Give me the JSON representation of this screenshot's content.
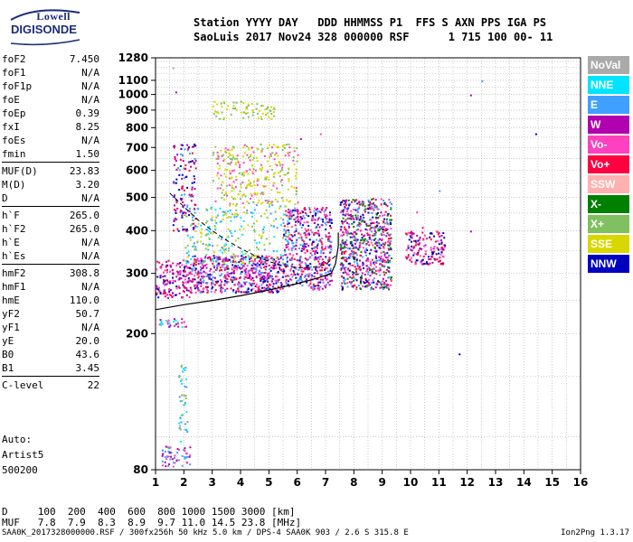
{
  "logo": {
    "top": "Lowell",
    "bottom": "DIGISONDE"
  },
  "header": {
    "line1": "Station YYYY DAY   DDD HHMMSS P1  FFS S AXN PPS IGA PS",
    "line2": "SaoLuis 2017 Nov24 328 000000 RSF      1 715 100 00- 11"
  },
  "params_groups": [
    [
      {
        "label": "foF2",
        "value": "7.450"
      },
      {
        "label": "foF1",
        "value": "N/A"
      },
      {
        "label": "foF1p",
        "value": "N/A"
      },
      {
        "label": "foE",
        "value": "N/A"
      },
      {
        "label": "foEp",
        "value": "0.39"
      },
      {
        "label": "fxI",
        "value": "8.25"
      },
      {
        "label": "foEs",
        "value": "N/A"
      },
      {
        "label": "fmin",
        "value": "1.50"
      }
    ],
    [
      {
        "label": "MUF(D)",
        "value": "23.83"
      },
      {
        "label": "M(D)",
        "value": "3.20"
      },
      {
        "label": "D",
        "value": "N/A"
      }
    ],
    [
      {
        "label": "h`F",
        "value": "265.0"
      },
      {
        "label": "h`F2",
        "value": "265.0"
      },
      {
        "label": "h`E",
        "value": "N/A"
      },
      {
        "label": "h`Es",
        "value": "N/A"
      }
    ],
    [
      {
        "label": "hmF2",
        "value": "308.8"
      },
      {
        "label": "hmF1",
        "value": "N/A"
      },
      {
        "label": "hmE",
        "value": "110.0"
      },
      {
        "label": "yF2",
        "value": "50.7"
      },
      {
        "label": "yF1",
        "value": "N/A"
      },
      {
        "label": "yE",
        "value": "20.0"
      },
      {
        "label": "B0",
        "value": "43.6"
      },
      {
        "label": "B1",
        "value": "3.45"
      }
    ],
    [
      {
        "label": "C-level",
        "value": "22"
      }
    ]
  ],
  "auto": {
    "line1": "Auto:",
    "line2": "Artist5",
    "line3": "500200"
  },
  "legend": [
    {
      "label": "NoVal",
      "color": "#aaaaaa"
    },
    {
      "label": "NNE",
      "color": "#00e5ff"
    },
    {
      "label": "E",
      "color": "#40a0ff"
    },
    {
      "label": "W",
      "color": "#b000b0"
    },
    {
      "label": "Vo-",
      "color": "#ff40c0"
    },
    {
      "label": "Vo+",
      "color": "#ff0040"
    },
    {
      "label": "SSW",
      "color": "#ffb0b0"
    },
    {
      "label": "X-",
      "color": "#008000"
    },
    {
      "label": "X+",
      "color": "#80c060"
    },
    {
      "label": "SSE",
      "color": "#d8d800"
    },
    {
      "label": "NNW",
      "color": "#0000c0"
    }
  ],
  "dtable": {
    "d_line": "D     100  200  400  600  800 1000 1500 3000 [km]",
    "muf_line": "MUF   7.8  7.9  8.3  8.9  9.7 11.0 14.5 23.8 [MHz]"
  },
  "footer": {
    "left": "SAA0K_2017328000000.RSF / 300fx256h 50 kHz 5.0 km / DPS-4 SAA0K 903 / 2.6 S 315.8 E",
    "right": "Ion2Png 1.3.17"
  },
  "chart_data": {
    "type": "scatter",
    "x_ticks": [
      "1",
      "2",
      "3",
      "4",
      "5",
      "6",
      "7",
      "8",
      "9",
      "10",
      "11",
      "12",
      "13",
      "14",
      "15",
      "16"
    ],
    "y_ticks": [
      {
        "value": 80,
        "label": "80"
      },
      {
        "value": 200,
        "label": "200"
      },
      {
        "value": 300,
        "label": "300"
      },
      {
        "value": 400,
        "label": "400"
      },
      {
        "value": 500,
        "label": "500"
      },
      {
        "value": 600,
        "label": "600"
      },
      {
        "value": 700,
        "label": "700"
      },
      {
        "value": 800,
        "label": "800"
      },
      {
        "value": 900,
        "label": "900"
      },
      {
        "value": 1000,
        "label": "1000"
      },
      {
        "value": 1100,
        "label": "1100"
      },
      {
        "value": 1280,
        "label": "1280"
      }
    ],
    "xlim": [
      1,
      16
    ],
    "ylim": [
      80,
      1280
    ],
    "y_scale": "log",
    "grid": true,
    "clusters": [
      {
        "xmin": 1.0,
        "xmax": 2.2,
        "ymin": 255,
        "ymax": 330,
        "n": 160,
        "colors": [
          "#ff0040",
          "#ff40c0",
          "#b000b0",
          "#0000c0"
        ]
      },
      {
        "xmin": 2.2,
        "xmax": 5.5,
        "ymin": 265,
        "ymax": 340,
        "n": 600,
        "colors": [
          "#ff0040",
          "#ff40c0",
          "#b000b0",
          "#0000c0",
          "#40a0ff"
        ]
      },
      {
        "xmin": 5.5,
        "xmax": 7.2,
        "ymin": 270,
        "ymax": 470,
        "n": 500,
        "colors": [
          "#ff0040",
          "#ff40c0",
          "#b000b0",
          "#0000c0",
          "#40a0ff"
        ]
      },
      {
        "xmin": 7.5,
        "xmax": 9.3,
        "ymin": 270,
        "ymax": 500,
        "n": 700,
        "colors": [
          "#ff0040",
          "#ff40c0",
          "#b000b0",
          "#0000c0",
          "#40a0ff",
          "#008000"
        ]
      },
      {
        "xmin": 9.8,
        "xmax": 11.2,
        "ymin": 320,
        "ymax": 400,
        "n": 150,
        "colors": [
          "#ff0040",
          "#ff40c0",
          "#b000b0",
          "#0000c0"
        ]
      },
      {
        "xmin": 2.0,
        "xmax": 5.7,
        "ymin": 320,
        "ymax": 480,
        "n": 260,
        "colors": [
          "#d8d800",
          "#80c060",
          "#40a0ff",
          "#00e5ff"
        ]
      },
      {
        "xmin": 3.0,
        "xmax": 6.0,
        "ymin": 480,
        "ymax": 720,
        "n": 300,
        "colors": [
          "#d8d800",
          "#d8d800",
          "#80c060",
          "#ff40c0"
        ]
      },
      {
        "xmin": 3.0,
        "xmax": 5.2,
        "ymin": 850,
        "ymax": 960,
        "n": 70,
        "colors": [
          "#d8d800",
          "#80c060"
        ]
      },
      {
        "xmin": 1.6,
        "xmax": 2.4,
        "ymin": 400,
        "ymax": 720,
        "n": 140,
        "colors": [
          "#b000b0",
          "#ff0040",
          "#0000c0",
          "#40a0ff"
        ]
      },
      {
        "xmin": 1.2,
        "xmax": 2.2,
        "ymin": 82,
        "ymax": 95,
        "n": 60,
        "colors": [
          "#b000b0",
          "#ff40c0",
          "#40a0ff"
        ]
      },
      {
        "xmin": 1.8,
        "xmax": 2.1,
        "ymin": 95,
        "ymax": 165,
        "n": 40,
        "colors": [
          "#00e5ff",
          "#40a0ff",
          "#80c060"
        ]
      },
      {
        "xmin": 1.1,
        "xmax": 2.1,
        "ymin": 210,
        "ymax": 222,
        "n": 30,
        "colors": [
          "#ff40c0",
          "#b000b0",
          "#00e5ff"
        ]
      }
    ],
    "isolated_points": [
      {
        "x": 12.5,
        "y": 1100,
        "color": "#40a0ff"
      },
      {
        "x": 12.1,
        "y": 1000,
        "color": "#b000b0"
      },
      {
        "x": 14.4,
        "y": 770,
        "color": "#0000c0"
      },
      {
        "x": 11.7,
        "y": 175,
        "color": "#0000c0"
      },
      {
        "x": 12.1,
        "y": 400,
        "color": "#b000b0"
      },
      {
        "x": 10.2,
        "y": 455,
        "color": "#ff40c0"
      },
      {
        "x": 11.0,
        "y": 525,
        "color": "#40a0ff"
      },
      {
        "x": 1.6,
        "y": 1200,
        "color": "#aaaaaa"
      },
      {
        "x": 1.7,
        "y": 1020,
        "color": "#b000b0"
      },
      {
        "x": 10.4,
        "y": 410,
        "color": "#ff0040"
      },
      {
        "x": 6.1,
        "y": 745,
        "color": "#b000b0"
      },
      {
        "x": 6.8,
        "y": 770,
        "color": "#ff40c0"
      }
    ],
    "profile_curve": [
      {
        "x": 1.0,
        "y": 235
      },
      {
        "x": 2.0,
        "y": 243
      },
      {
        "x": 3.0,
        "y": 250
      },
      {
        "x": 4.0,
        "y": 258
      },
      {
        "x": 5.0,
        "y": 268
      },
      {
        "x": 6.0,
        "y": 280
      },
      {
        "x": 6.8,
        "y": 292
      },
      {
        "x": 7.2,
        "y": 300
      },
      {
        "x": 7.35,
        "y": 320
      },
      {
        "x": 7.45,
        "y": 360
      },
      {
        "x": 7.45,
        "y": 395
      }
    ],
    "trace_curve": [
      {
        "x": 1.5,
        "y": 515
      },
      {
        "x": 2.0,
        "y": 470
      },
      {
        "x": 2.5,
        "y": 430
      },
      {
        "x": 3.0,
        "y": 400
      },
      {
        "x": 3.5,
        "y": 375
      },
      {
        "x": 4.0,
        "y": 355
      },
      {
        "x": 4.5,
        "y": 338
      },
      {
        "x": 5.0,
        "y": 325
      },
      {
        "x": 5.5,
        "y": 316
      },
      {
        "x": 6.0,
        "y": 312
      },
      {
        "x": 6.5,
        "y": 312
      },
      {
        "x": 7.0,
        "y": 318
      },
      {
        "x": 7.4,
        "y": 340
      }
    ]
  }
}
